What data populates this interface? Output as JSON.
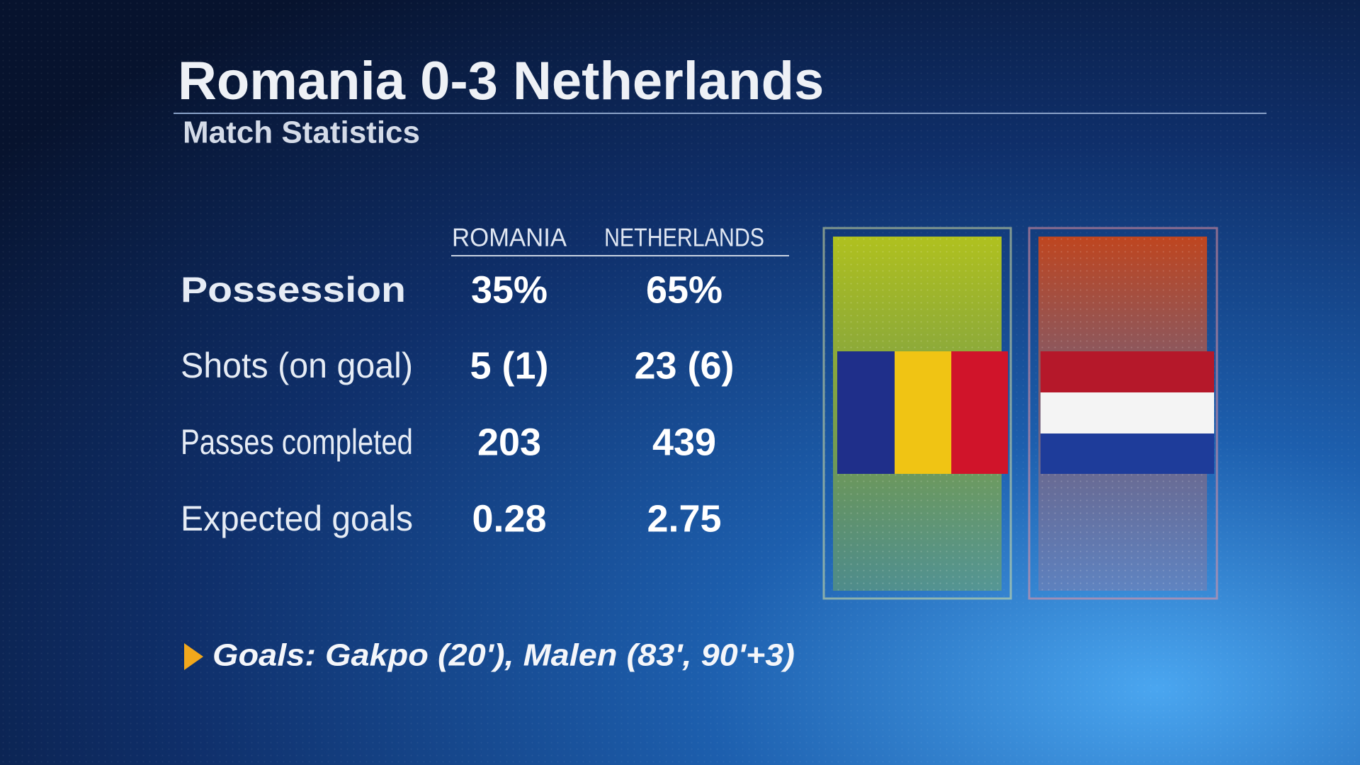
{
  "header": {
    "title": "Romania 0-3 Netherlands",
    "subtitle": "Match Statistics"
  },
  "table": {
    "columns": [
      "ROMANIA",
      "NETHERLANDS"
    ],
    "rows": [
      [
        "Possession",
        "35%",
        "65%"
      ],
      [
        "Shots (on goal)",
        "5 (1)",
        "23 (6)"
      ],
      [
        "Passes completed",
        "203",
        "439"
      ],
      [
        "Expected goals",
        "0.28",
        "2.75"
      ]
    ]
  },
  "footer": {
    "goals": "Goals: Gakpo (20'), Malen (83', 90'+3)"
  }
}
